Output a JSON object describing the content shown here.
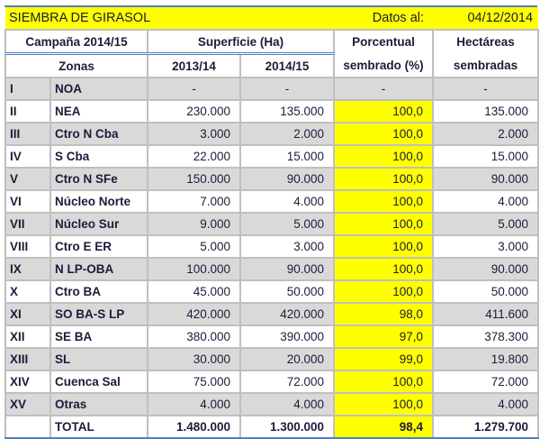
{
  "title": "SIEMBRA DE GIRASOL",
  "date_label": "Datos al:",
  "date": "04/12/2014",
  "headers": {
    "campaign": "Campaña 2014/15",
    "surface": "Superficie (Ha)",
    "pct_1": "Porcentual",
    "pct_2": "sembrado (%)",
    "ha_1": "Hectáreas",
    "ha_2": "sembradas",
    "zones": "Zonas",
    "y1": "2013/14",
    "y2": "2014/15"
  },
  "colors": {
    "highlight": "#ffff00",
    "row_shade": "#d9d9d9",
    "border_accent": "#4f81bd"
  },
  "rows": [
    {
      "num": "I",
      "zone": "NOA",
      "s1": "-",
      "s2": "-",
      "pct": "-",
      "ha": "-"
    },
    {
      "num": "II",
      "zone": "NEA",
      "s1": "230.000",
      "s2": "135.000",
      "pct": "100,0",
      "ha": "135.000"
    },
    {
      "num": "III",
      "zone": "Ctro N Cba",
      "s1": "3.000",
      "s2": "2.000",
      "pct": "100,0",
      "ha": "2.000"
    },
    {
      "num": "IV",
      "zone": "S Cba",
      "s1": "22.000",
      "s2": "15.000",
      "pct": "100,0",
      "ha": "15.000"
    },
    {
      "num": "V",
      "zone": "Ctro N SFe",
      "s1": "150.000",
      "s2": "90.000",
      "pct": "100,0",
      "ha": "90.000"
    },
    {
      "num": "VI",
      "zone": "Núcleo Norte",
      "s1": "7.000",
      "s2": "4.000",
      "pct": "100,0",
      "ha": "4.000"
    },
    {
      "num": "VII",
      "zone": "Núcleo Sur",
      "s1": "9.000",
      "s2": "5.000",
      "pct": "100,0",
      "ha": "5.000"
    },
    {
      "num": "VIII",
      "zone": "Ctro E ER",
      "s1": "5.000",
      "s2": "3.000",
      "pct": "100,0",
      "ha": "3.000"
    },
    {
      "num": "IX",
      "zone": "N LP-OBA",
      "s1": "100.000",
      "s2": "90.000",
      "pct": "100,0",
      "ha": "90.000"
    },
    {
      "num": "X",
      "zone": "Ctro BA",
      "s1": "45.000",
      "s2": "50.000",
      "pct": "100,0",
      "ha": "50.000"
    },
    {
      "num": "XI",
      "zone": "SO BA-S LP",
      "s1": "420.000",
      "s2": "420.000",
      "pct": "98,0",
      "ha": "411.600"
    },
    {
      "num": "XII",
      "zone": "SE BA",
      "s1": "380.000",
      "s2": "390.000",
      "pct": "97,0",
      "ha": "378.300"
    },
    {
      "num": "XIII",
      "zone": "SL",
      "s1": "30.000",
      "s2": "20.000",
      "pct": "99,0",
      "ha": "19.800"
    },
    {
      "num": "XIV",
      "zone": "Cuenca Sal",
      "s1": "75.000",
      "s2": "72.000",
      "pct": "100,0",
      "ha": "72.000"
    },
    {
      "num": "XV",
      "zone": "Otras",
      "s1": "4.000",
      "s2": "4.000",
      "pct": "100,0",
      "ha": "4.000"
    }
  ],
  "total": {
    "label": "TOTAL",
    "s1": "1.480.000",
    "s2": "1.300.000",
    "pct": "98,4",
    "ha": "1.279.700"
  }
}
